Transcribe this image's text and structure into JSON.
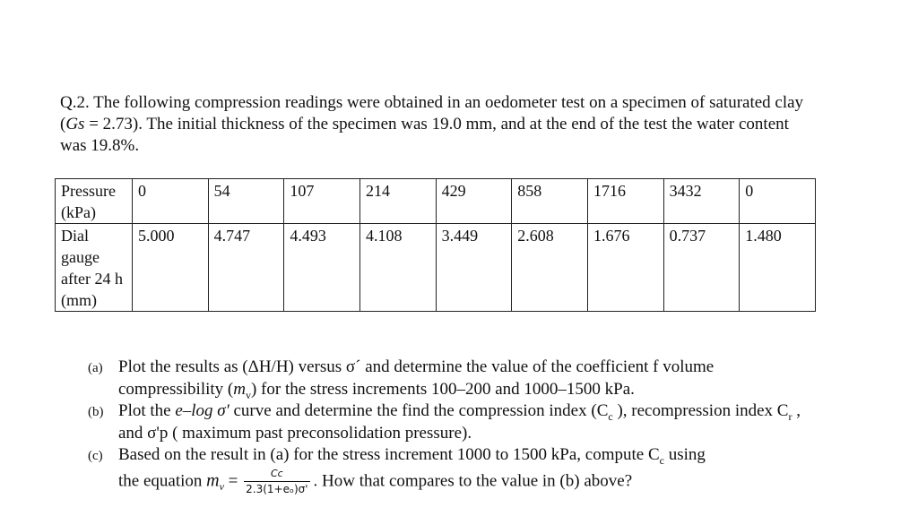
{
  "intro": {
    "part1": "Q.2. The following compression readings were obtained in an oedometer test on a specimen of saturated clay (",
    "gs_symbol": "Gs",
    "part2": " = 2.73). The initial thickness of the specimen was 19.0 mm, and at the end of the test the water content was 19.8%."
  },
  "table": {
    "row1_header": "Pressure (kPa)",
    "row1_values": [
      "0",
      "54",
      "107",
      "214",
      "429",
      "858",
      "1716",
      "3432",
      "0"
    ],
    "row2_header": "Dial gauge after 24 h (mm)",
    "row2_values": [
      "5.000",
      "4.747",
      "4.493",
      "4.108",
      "3.449",
      "2.608",
      "1.676",
      "0.737",
      "1.480"
    ]
  },
  "questions": {
    "a": {
      "label": "(a)",
      "text1": "Plot the results as (ΔH/H) versus σ´ and determine the value of the coefficient f volume compressibility (",
      "sym": "m",
      "sub": "v",
      "text2": ") for the stress increments 100–200 and 1000–1500 kPa."
    },
    "b": {
      "label": "(b)",
      "text1": "Plot the ",
      "sym": "e–log σ'",
      "text2": " curve and determine the find the  compression index (C",
      "cc_sub": "c",
      "text3": " ), recompression index  C",
      "cr_sub": "r",
      "text4": " , and  σ'p ( maximum past preconsolidation pressure)."
    },
    "c": {
      "label": "(c)",
      "text1": "Based on the result in (a) for the stress increment 1000 to 1500 kPa,  compute C",
      "c_sub": "c",
      "text2": " using",
      "eq_prefix": "the equation ",
      "mv": "m",
      "mv_sub": "v",
      "eq_equals": " =",
      "frac_num": "Cc",
      "frac_den": "2.3(1+eₒ)σ'",
      "text3": ". How that compares to the value in (b) above?"
    }
  }
}
